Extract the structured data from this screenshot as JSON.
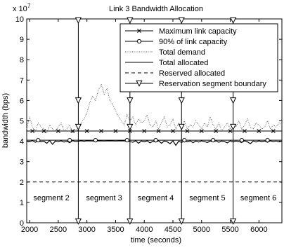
{
  "chart_data": {
    "type": "line",
    "title": "Link 3 Bandwidth Allocation",
    "xlabel": "time (seconds)",
    "ylabel": "bandwidth (bps)",
    "y_exponent_label": "x 10",
    "y_exponent_power": "7",
    "xlim": [
      1950,
      6400
    ],
    "ylim": [
      0,
      10
    ],
    "x_ticks": [
      2000,
      2500,
      3000,
      3500,
      4000,
      4500,
      5000,
      5500,
      6000
    ],
    "y_ticks": [
      0,
      1,
      2,
      3,
      4,
      5,
      6,
      7,
      8,
      9,
      10
    ],
    "grid": false,
    "legend_position": "top-right",
    "legend": [
      {
        "label": "Maximum link capacity",
        "style": "solid",
        "marker": "x"
      },
      {
        "label": "90% of link capacity",
        "style": "solid",
        "marker": "o"
      },
      {
        "label": "Total demand",
        "style": "dotted",
        "marker": "none"
      },
      {
        "label": "Total allocated",
        "style": "solid",
        "marker": "none"
      },
      {
        "label": "Reserved allocated",
        "style": "dashed",
        "marker": "none"
      },
      {
        "label": "Reservation segment boundary",
        "style": "solid",
        "marker": "triangle-down"
      }
    ],
    "series": [
      {
        "name": "Maximum link capacity",
        "constant": 4.5,
        "marker_x": [
          2050,
          2250,
          2500,
          2750,
          3000,
          3250,
          3500,
          3750,
          4000,
          4250,
          4500,
          4750,
          5000,
          5250,
          5500,
          5750,
          6000,
          6250
        ]
      },
      {
        "name": "90% of link capacity",
        "constant": 4.05,
        "marker_x": [
          2150,
          2700,
          3150,
          3700,
          4200,
          4700,
          5200,
          5700,
          6150
        ]
      },
      {
        "name": "Total demand",
        "x": [
          1950,
          2000,
          2050,
          2100,
          2150,
          2200,
          2250,
          2300,
          2350,
          2400,
          2450,
          2500,
          2550,
          2600,
          2650,
          2700,
          2750,
          2800,
          2850,
          2900,
          2950,
          3000,
          3050,
          3100,
          3150,
          3200,
          3250,
          3300,
          3350,
          3400,
          3450,
          3500,
          3550,
          3600,
          3650,
          3700,
          3750,
          3800,
          3850,
          3900,
          3950,
          4000,
          4050,
          4100,
          4150,
          4200,
          4250,
          4300,
          4350,
          4400,
          4450,
          4500,
          4550,
          4600,
          4650,
          4700,
          4750,
          4800,
          4850,
          4900,
          4950,
          5000,
          5050,
          5100,
          5150,
          5200,
          5250,
          5300,
          5350,
          5400,
          5450,
          5500,
          5550,
          5600,
          5650,
          5700,
          5750,
          5800,
          5850,
          5900,
          5950,
          6000,
          6050,
          6100,
          6150,
          6200,
          6250,
          6300,
          6350,
          6400
        ],
        "values": [
          4.6,
          5.2,
          4.7,
          4.5,
          4.9,
          4.7,
          4.6,
          4.4,
          4.8,
          4.6,
          4.5,
          4.7,
          4.9,
          4.5,
          4.6,
          4.8,
          4.4,
          4.6,
          4.5,
          4.9,
          5.1,
          5.4,
          5.9,
          6.2,
          6.0,
          6.5,
          6.8,
          6.3,
          6.6,
          6.0,
          5.8,
          5.5,
          5.2,
          5.0,
          4.8,
          5.3,
          5.0,
          5.2,
          4.8,
          5.1,
          4.9,
          5.0,
          5.3,
          4.8,
          4.7,
          5.0,
          4.6,
          4.9,
          5.2,
          4.7,
          4.8,
          5.1,
          4.6,
          4.9,
          4.7,
          5.0,
          4.6,
          4.8,
          4.7,
          5.0,
          4.8,
          4.6,
          4.9,
          4.7,
          5.2,
          4.8,
          4.6,
          4.9,
          4.5,
          4.7,
          4.9,
          4.6,
          4.8,
          4.7,
          5.0,
          4.6,
          4.8,
          5.1,
          4.7,
          4.6,
          4.9,
          4.8,
          4.6,
          4.7,
          5.0,
          4.6,
          4.8,
          4.7,
          4.9,
          4.8
        ]
      },
      {
        "name": "Total allocated",
        "x": [
          1950,
          2000,
          2050,
          2100,
          2150,
          2200,
          2250,
          2300,
          2350,
          2400,
          2450,
          2500,
          2550,
          2600,
          2650,
          2700,
          2750,
          2800,
          2850,
          2900,
          2950,
          3000,
          3100,
          3200,
          3300,
          3400,
          3500,
          3600,
          3700,
          3800,
          3850,
          3900,
          3950,
          4000,
          4050,
          4100,
          4150,
          4200,
          4250,
          4300,
          4350,
          4400,
          4450,
          4500,
          4550,
          4600,
          4650,
          4700,
          4750,
          4800,
          4850,
          4900,
          4950,
          5000,
          5050,
          5100,
          5150,
          5200,
          5250,
          5300,
          5350,
          5400,
          5450,
          5500,
          5550,
          5600,
          5650,
          5700,
          5750,
          5800,
          5850,
          5900,
          5950,
          6000,
          6050,
          6100,
          6150,
          6200,
          6250,
          6300,
          6350,
          6400
        ],
        "values": [
          4.0,
          3.98,
          4.03,
          3.95,
          4.02,
          3.97,
          4.0,
          3.9,
          4.03,
          3.85,
          4.01,
          3.98,
          4.02,
          3.96,
          4.0,
          3.93,
          4.03,
          3.98,
          4.0,
          4.02,
          4.0,
          4.02,
          4.01,
          4.02,
          4.01,
          4.02,
          4.01,
          4.02,
          4.01,
          3.95,
          4.02,
          3.9,
          4.01,
          3.97,
          4.02,
          3.92,
          4.0,
          3.96,
          4.02,
          3.9,
          4.01,
          3.97,
          3.88,
          4.02,
          3.8,
          4.0,
          3.94,
          4.01,
          3.97,
          4.02,
          3.93,
          4.01,
          3.96,
          4.02,
          3.98,
          3.94,
          4.01,
          3.97,
          4.02,
          3.95,
          4.01,
          3.98,
          3.92,
          4.02,
          3.96,
          4.01,
          3.98,
          3.94,
          4.02,
          3.97,
          3.88,
          4.01,
          3.96,
          4.02,
          3.97,
          4.01,
          3.95,
          4.02,
          3.98,
          4.01,
          3.97,
          4.0
        ]
      },
      {
        "name": "Reserved allocated",
        "constant": 2.0
      },
      {
        "name": "Reservation segment boundary",
        "x_values": [
          2850,
          3750,
          4650,
          5550
        ]
      }
    ],
    "segments": [
      {
        "label": "segment 2",
        "x": 2380
      },
      {
        "label": "segment 3",
        "x": 3300
      },
      {
        "label": "segment 4",
        "x": 4200
      },
      {
        "label": "segment 5",
        "x": 5100
      },
      {
        "label": "segment 6",
        "x": 5990
      }
    ]
  }
}
